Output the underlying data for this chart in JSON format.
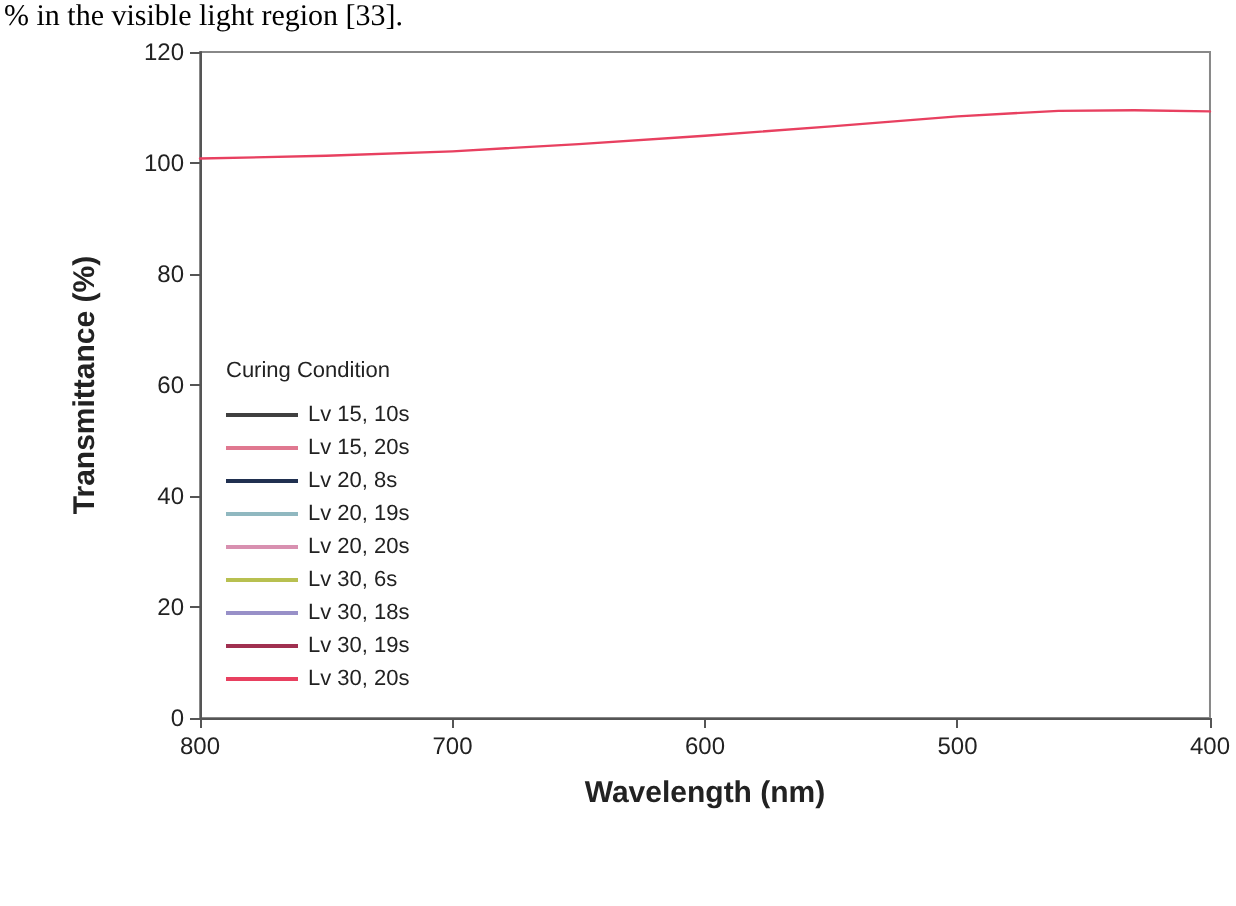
{
  "chart_data": {
    "type": "line",
    "xlabel": "Wavelength (nm)",
    "ylabel": "Transmittance (%)",
    "legend_title": "Curing Condition",
    "annotations": [
      "% in the visible light region [33]."
    ],
    "x": [
      800,
      750,
      700,
      650,
      600,
      550,
      500,
      460,
      430,
      400
    ],
    "series": [
      {
        "name": "Lv 15, 10s",
        "color": "#404040",
        "values": [
          null,
          null,
          null,
          null,
          null,
          null,
          null,
          null,
          null,
          null
        ]
      },
      {
        "name": "Lv 15, 20s",
        "color": "#e07890",
        "values": [
          null,
          null,
          null,
          null,
          null,
          null,
          null,
          null,
          null,
          null
        ]
      },
      {
        "name": "Lv 20, 8s",
        "color": "#203050",
        "values": [
          null,
          null,
          null,
          null,
          null,
          null,
          null,
          null,
          null,
          null
        ]
      },
      {
        "name": "Lv 20, 19s",
        "color": "#90b8c0",
        "values": [
          null,
          null,
          null,
          null,
          null,
          null,
          null,
          null,
          null,
          null
        ]
      },
      {
        "name": "Lv 20, 20s",
        "color": "#d890b0",
        "values": [
          null,
          null,
          null,
          null,
          null,
          null,
          null,
          null,
          null,
          null
        ]
      },
      {
        "name": "Lv 30, 6s",
        "color": "#b8c050",
        "values": [
          null,
          null,
          null,
          null,
          null,
          null,
          null,
          null,
          null,
          null
        ]
      },
      {
        "name": "Lv 30, 18s",
        "color": "#9890c8",
        "values": [
          null,
          null,
          null,
          null,
          null,
          null,
          null,
          null,
          null,
          null
        ]
      },
      {
        "name": "Lv 30, 19s",
        "color": "#a03050",
        "values": [
          null,
          null,
          null,
          null,
          null,
          null,
          null,
          null,
          null,
          null
        ]
      },
      {
        "name": "Lv 30, 20s",
        "color": "#e84060",
        "values": [
          100.8,
          101.3,
          102.1,
          103.4,
          104.9,
          106.6,
          108.4,
          109.4,
          109.5,
          109.3
        ]
      }
    ],
    "xlim": [
      800,
      400
    ],
    "xticks": [
      800,
      700,
      600,
      500,
      400
    ],
    "ylim": [
      0,
      120
    ],
    "yticks": [
      0,
      20,
      40,
      60,
      80,
      100,
      120
    ],
    "grid": false,
    "legend": "left",
    "marker": "none",
    "line_style": "solid"
  }
}
